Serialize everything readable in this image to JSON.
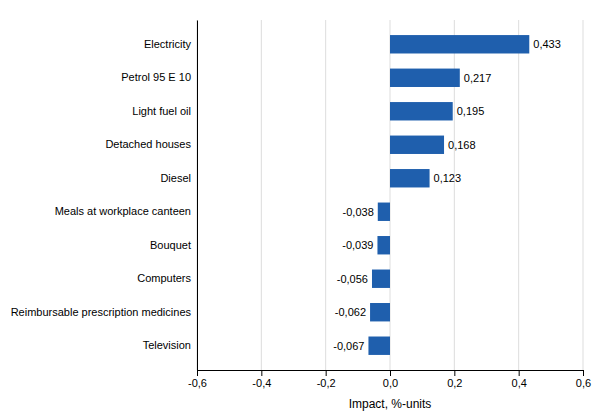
{
  "chart_data": {
    "type": "bar",
    "orientation": "horizontal",
    "categories": [
      "Television",
      "Reimbursable prescription medicines",
      "Computers",
      "Bouquet",
      "Meals at workplace canteen",
      "Diesel",
      "Detached houses",
      "Light fuel oil",
      "Petrol 95 E 10",
      "Electricity"
    ],
    "values": [
      -0.067,
      -0.062,
      -0.056,
      -0.039,
      -0.038,
      0.123,
      0.168,
      0.195,
      0.217,
      0.433
    ],
    "value_labels": [
      "-0,067",
      "-0,062",
      "-0,056",
      "-0,039",
      "-0,038",
      "0,123",
      "0,168",
      "0,195",
      "0,217",
      "0,433"
    ],
    "data_labels": true,
    "color": "#1F5FAD",
    "xlabel": "Impact, %-units",
    "xlim": [
      -0.6,
      0.6
    ],
    "xticks": [
      {
        "value": -0.6,
        "label": "-0,6"
      },
      {
        "value": -0.4,
        "label": "-0,4"
      },
      {
        "value": -0.2,
        "label": "-0,2"
      },
      {
        "value": 0.0,
        "label": "0,0"
      },
      {
        "value": 0.2,
        "label": "0,2"
      },
      {
        "value": 0.4,
        "label": "0,4"
      },
      {
        "value": 0.6,
        "label": "0,6"
      }
    ],
    "grid": true
  }
}
